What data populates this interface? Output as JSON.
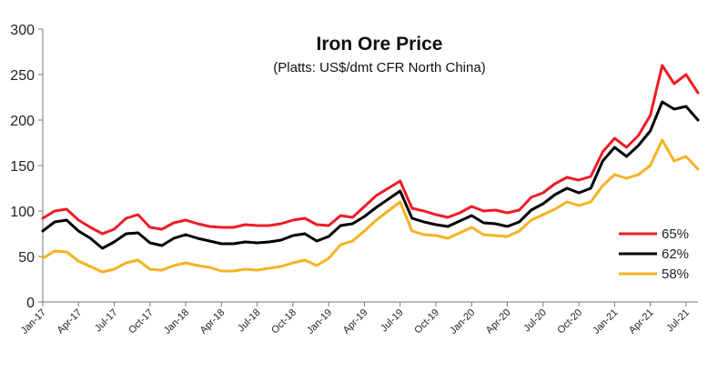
{
  "chart_data": {
    "type": "line",
    "title": "Iron Ore Price",
    "subtitle": "(Platts: US$/dmt CFR North China)",
    "xlabel": "",
    "ylabel": "",
    "ylim": [
      0,
      300
    ],
    "yticks": [
      "0",
      "50",
      "100",
      "150",
      "200",
      "250",
      "300"
    ],
    "xtick_labels": [
      "Jan-17",
      "Apr-17",
      "Jul-17",
      "Oct-17",
      "Jan-18",
      "Apr-18",
      "Jul-18",
      "Oct-18",
      "Jan-19",
      "Apr-19",
      "Jul-19",
      "Oct-19",
      "Jan-20",
      "Apr-20",
      "Jul-20",
      "Oct-20",
      "Jan-21",
      "Apr-21",
      "Jul-21"
    ],
    "grid": false,
    "legend_position": "right",
    "x": [
      "Jan-17",
      "Feb-17",
      "Mar-17",
      "Apr-17",
      "May-17",
      "Jun-17",
      "Jul-17",
      "Aug-17",
      "Sep-17",
      "Oct-17",
      "Nov-17",
      "Dec-17",
      "Jan-18",
      "Feb-18",
      "Mar-18",
      "Apr-18",
      "May-18",
      "Jun-18",
      "Jul-18",
      "Aug-18",
      "Sep-18",
      "Oct-18",
      "Nov-18",
      "Dec-18",
      "Jan-19",
      "Feb-19",
      "Mar-19",
      "Apr-19",
      "May-19",
      "Jun-19",
      "Jul-19",
      "Aug-19",
      "Sep-19",
      "Oct-19",
      "Nov-19",
      "Dec-19",
      "Jan-20",
      "Feb-20",
      "Mar-20",
      "Apr-20",
      "May-20",
      "Jun-20",
      "Jul-20",
      "Aug-20",
      "Sep-20",
      "Oct-20",
      "Nov-20",
      "Dec-20",
      "Jan-21",
      "Feb-21",
      "Mar-21",
      "Apr-21",
      "May-21",
      "Jun-21",
      "Jul-21",
      "Aug-21"
    ],
    "series": [
      {
        "name": "65%",
        "color": "#ee1c25",
        "values": [
          92,
          100,
          102,
          90,
          82,
          75,
          80,
          92,
          96,
          82,
          80,
          87,
          90,
          86,
          83,
          82,
          82,
          85,
          84,
          84,
          86,
          90,
          92,
          85,
          84,
          95,
          93,
          105,
          117,
          125,
          133,
          103,
          100,
          96,
          93,
          98,
          105,
          100,
          101,
          98,
          101,
          115,
          120,
          130,
          137,
          134,
          138,
          165,
          180,
          170,
          183,
          205,
          260,
          240,
          250,
          230
        ]
      },
      {
        "name": "62%",
        "color": "#000000",
        "values": [
          78,
          88,
          90,
          78,
          70,
          59,
          66,
          75,
          76,
          65,
          62,
          70,
          74,
          70,
          67,
          64,
          64,
          66,
          65,
          66,
          68,
          73,
          75,
          67,
          72,
          84,
          86,
          94,
          104,
          113,
          122,
          92,
          88,
          85,
          83,
          89,
          95,
          87,
          86,
          83,
          88,
          101,
          108,
          118,
          125,
          120,
          125,
          155,
          170,
          160,
          172,
          188,
          220,
          212,
          215,
          200
        ]
      },
      {
        "name": "58%",
        "color": "#f6b223",
        "values": [
          48,
          56,
          55,
          45,
          39,
          33,
          36,
          43,
          46,
          36,
          35,
          40,
          43,
          40,
          38,
          34,
          34,
          36,
          35,
          37,
          39,
          43,
          46,
          40,
          48,
          63,
          67,
          78,
          90,
          100,
          110,
          78,
          74,
          73,
          70,
          76,
          82,
          74,
          73,
          72,
          78,
          90,
          96,
          102,
          110,
          106,
          110,
          128,
          140,
          136,
          140,
          150,
          178,
          155,
          160,
          146
        ]
      }
    ]
  }
}
